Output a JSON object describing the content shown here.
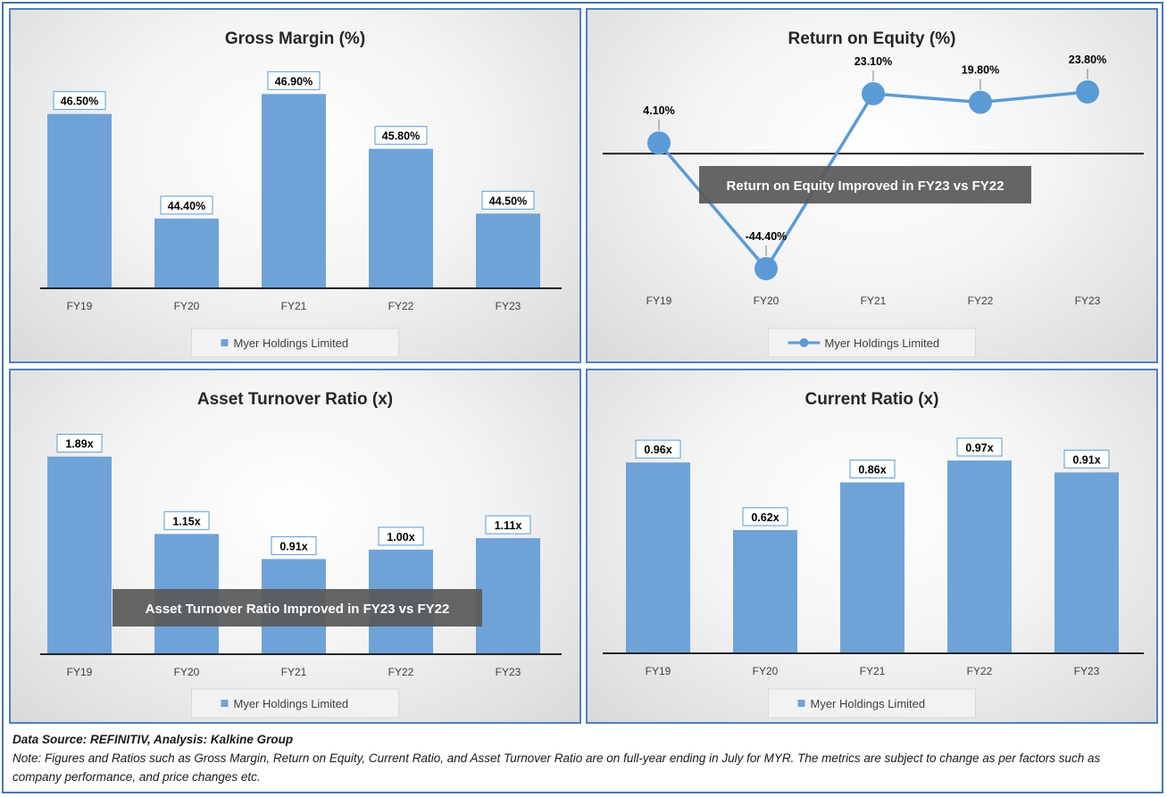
{
  "chart_data": [
    {
      "id": "gross-margin",
      "type": "bar",
      "title": "Gross Margin (%)",
      "categories": [
        "FY19",
        "FY20",
        "FY21",
        "FY22",
        "FY23"
      ],
      "values": [
        46.5,
        44.4,
        46.9,
        45.8,
        44.5
      ],
      "data_labels": [
        "46.50%",
        "44.40%",
        "46.90%",
        "45.80%",
        "44.50%"
      ],
      "ylim": [
        43,
        47.3
      ],
      "series_name": "Myer Holdings Limited",
      "legend": "bottom",
      "grid": false,
      "color": "#6fa3d8"
    },
    {
      "id": "return-on-equity",
      "type": "line",
      "title": "Return on Equity (%)",
      "categories": [
        "FY19",
        "FY20",
        "FY21",
        "FY22",
        "FY23"
      ],
      "values": [
        4.1,
        -44.4,
        23.1,
        19.8,
        23.8
      ],
      "data_labels": [
        "4.10%",
        "-44.40%",
        "23.10%",
        "19.80%",
        "23.80%"
      ],
      "ylim": [
        -50,
        40
      ],
      "series_name": "Myer Holdings Limited",
      "legend": "bottom",
      "grid": false,
      "color": "#5b9bd5",
      "callout": "Return on Equity Improved in FY23 vs FY22"
    },
    {
      "id": "asset-turnover",
      "type": "bar",
      "title": "Asset Turnover Ratio (x)",
      "categories": [
        "FY19",
        "FY20",
        "FY21",
        "FY22",
        "FY23"
      ],
      "values": [
        1.89,
        1.15,
        0.91,
        1.0,
        1.11
      ],
      "data_labels": [
        "1.89x",
        "1.15x",
        "0.91x",
        "1.00x",
        "1.11x"
      ],
      "ylim": [
        0,
        2.1
      ],
      "series_name": "Myer Holdings Limited",
      "legend": "bottom",
      "grid": false,
      "color": "#6fa3d8",
      "callout": "Asset Turnover Ratio Improved in FY23 vs FY22"
    },
    {
      "id": "current-ratio",
      "type": "bar",
      "title": "Current Ratio (x)",
      "categories": [
        "FY19",
        "FY20",
        "FY21",
        "FY22",
        "FY23"
      ],
      "values": [
        0.96,
        0.62,
        0.86,
        0.97,
        0.91
      ],
      "data_labels": [
        "0.96x",
        "0.62x",
        "0.86x",
        "0.97x",
        "0.91x"
      ],
      "ylim": [
        0,
        1.1
      ],
      "series_name": "Myer Holdings Limited",
      "legend": "bottom",
      "grid": false,
      "color": "#6fa3d8"
    }
  ],
  "footer": {
    "source": "Data Source: REFINITIV, Analysis: Kalkine Group",
    "note": "Note: Figures and Ratios such as Gross Margin, Return on Equity, Current Ratio, and Asset Turnover Ratio are on full-year ending in July for MYR. The metrics are subject to change as per factors such as company performance, and price changes etc."
  }
}
